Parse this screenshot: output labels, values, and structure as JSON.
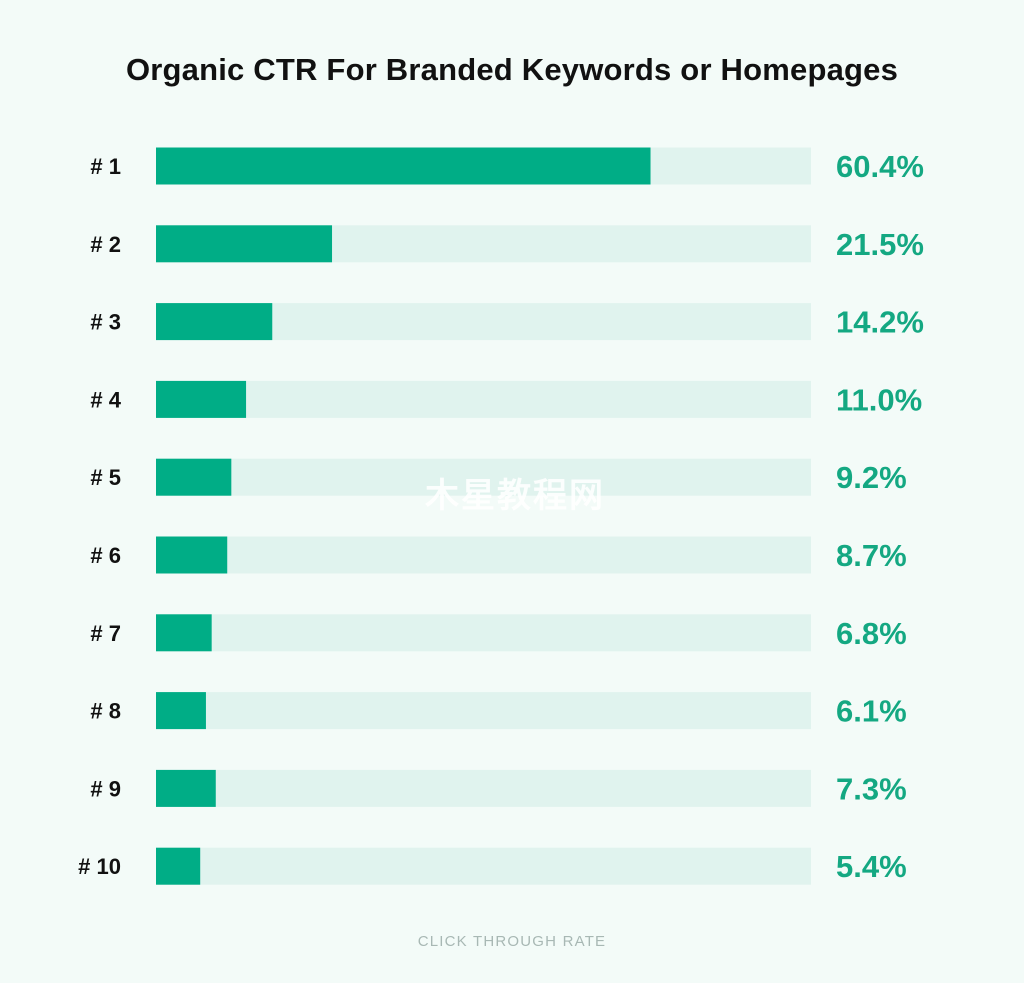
{
  "colors": {
    "background": "#f3fbf8",
    "bar_fill": "#00ad86",
    "bar_track": "#e0f3ee",
    "value_text": "#14a882",
    "label_text": "#111111",
    "axis_label_text": "#a8b8b4"
  },
  "watermark": "木星教程网",
  "chart_data": {
    "type": "bar",
    "orientation": "horizontal",
    "title": "Organic CTR For Branded Keywords or Homepages",
    "xlabel": "CLICK THROUGH RATE",
    "ylabel": "",
    "xlim": [
      0,
      80
    ],
    "grid": false,
    "categories": [
      "# 1",
      "# 2",
      "# 3",
      "# 4",
      "# 5",
      "# 6",
      "# 7",
      "# 8",
      "# 9",
      "# 10"
    ],
    "values": [
      60.4,
      21.5,
      14.2,
      11.0,
      9.2,
      8.7,
      6.8,
      6.1,
      7.3,
      5.4
    ],
    "value_labels": [
      "60.4%",
      "21.5%",
      "14.2%",
      "11.0%",
      "9.2%",
      "8.7%",
      "6.8%",
      "6.1%",
      "7.3%",
      "5.4%"
    ]
  }
}
